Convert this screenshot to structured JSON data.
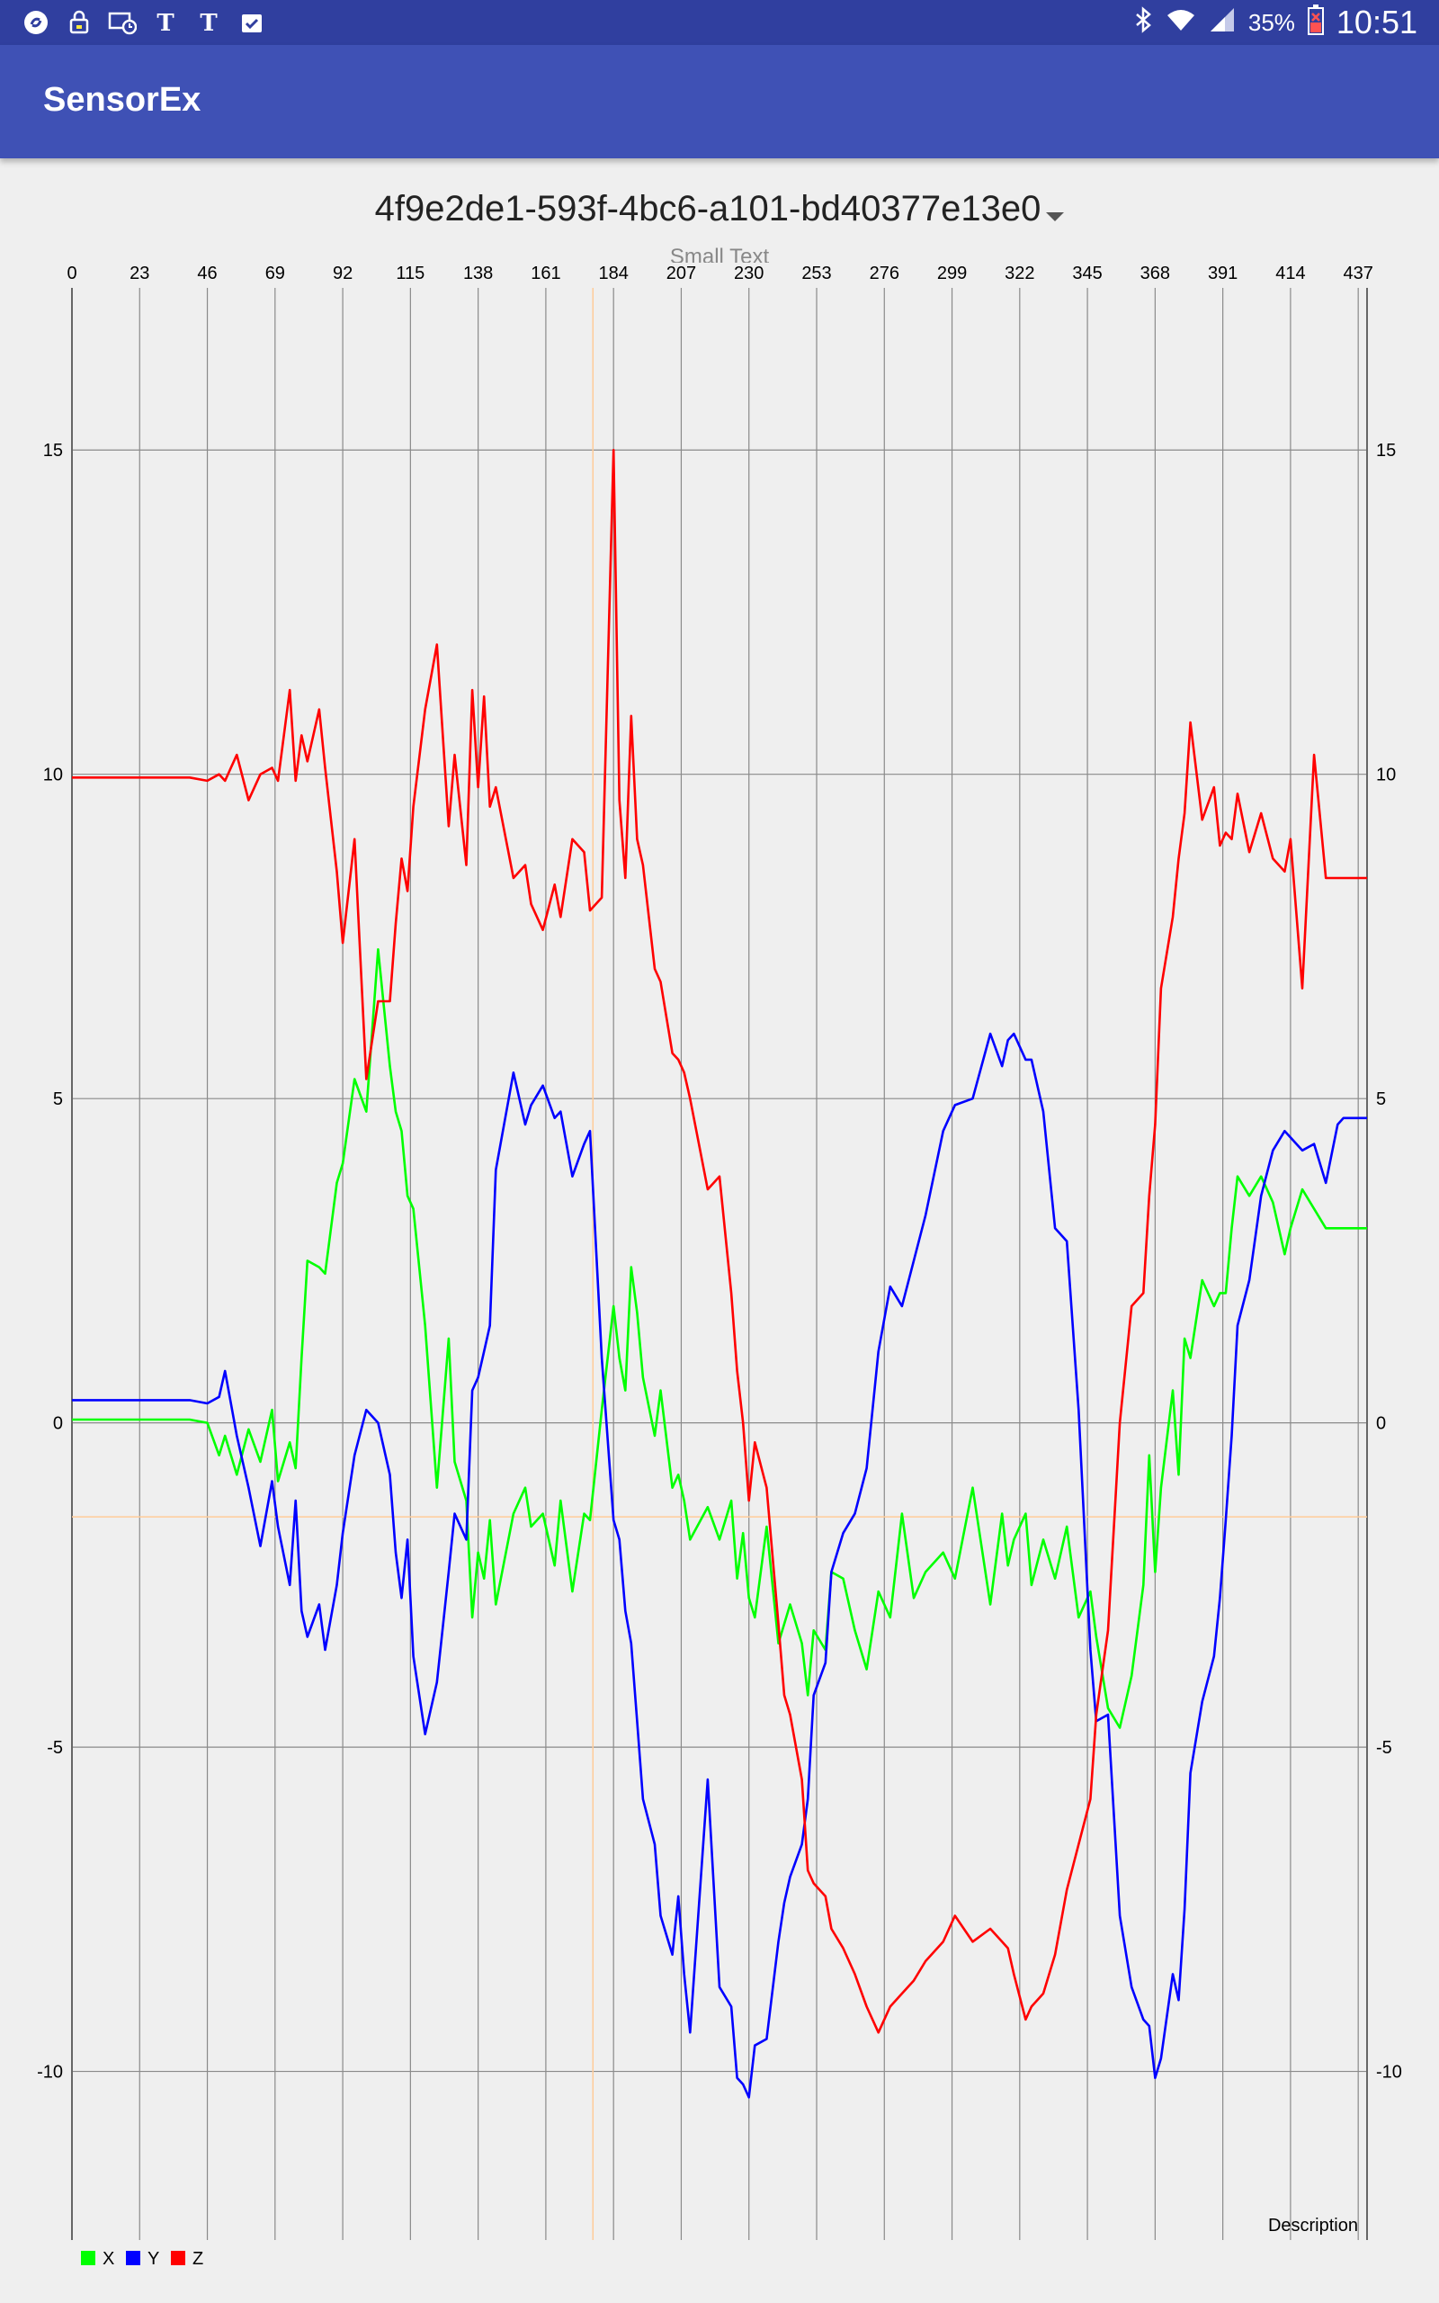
{
  "status_bar": {
    "icons_left": [
      "shazam-icon",
      "lock-app-icon",
      "screen-timer-icon",
      "nyt-icon",
      "nyt-icon",
      "clipboard-check-icon"
    ],
    "bluetooth_icon": "bluetooth-icon",
    "wifi_icon": "wifi-icon",
    "signal_icon": "signal-icon",
    "battery_percent": "35%",
    "battery_icon": "battery-icon",
    "time": "10:51"
  },
  "app": {
    "title": "SensorEx"
  },
  "spinner": {
    "selected": "4f9e2de1-593f-4bc6-a101-bd40377e13e0",
    "icon": "dropdown-caret-icon"
  },
  "small_text": "Small Text",
  "chart_data": {
    "type": "line",
    "x_ticks": [
      "0",
      "23",
      "46",
      "69",
      "92",
      "115",
      "138",
      "161",
      "184",
      "207",
      "230",
      "253",
      "276",
      "299",
      "322",
      "345",
      "368",
      "391",
      "414",
      "437"
    ],
    "y_ticks": [
      "15",
      "10",
      "5",
      "0",
      "-5",
      "-10"
    ],
    "xlim": [
      0,
      440
    ],
    "ylim": [
      -12.6,
      17.5
    ],
    "grid": true,
    "description": "Description",
    "legend_position": "bottom-left",
    "limit_lines": {
      "x": 177,
      "y": -1.45
    },
    "x_points": [
      0,
      20,
      40,
      46,
      50,
      52,
      56,
      60,
      64,
      68,
      70,
      74,
      76,
      78,
      80,
      84,
      86,
      90,
      92,
      96,
      100,
      104,
      108,
      110,
      112,
      114,
      116,
      120,
      124,
      128,
      130,
      134,
      136,
      138,
      140,
      142,
      144,
      150,
      154,
      156,
      160,
      164,
      166,
      170,
      174,
      176,
      180,
      184,
      186,
      188,
      190,
      192,
      194,
      198,
      200,
      204,
      206,
      208,
      210,
      216,
      220,
      224,
      226,
      228,
      230,
      232,
      236,
      240,
      242,
      244,
      248,
      250,
      252,
      256,
      258,
      262,
      266,
      270,
      274,
      278,
      282,
      286,
      290,
      296,
      300,
      306,
      312,
      316,
      318,
      320,
      324,
      326,
      330,
      334,
      338,
      342,
      346,
      348,
      352,
      356,
      360,
      364,
      366,
      368,
      370,
      374,
      376,
      378,
      380,
      384,
      388,
      390,
      392,
      394,
      396,
      400,
      404,
      408,
      412,
      414,
      418,
      422,
      426,
      430,
      432,
      434,
      436,
      438,
      440
    ],
    "series": [
      {
        "name": "X",
        "color": "#00ff00",
        "values": [
          0.05,
          0.05,
          0.05,
          0.0,
          -0.5,
          -0.2,
          -0.8,
          -0.1,
          -0.6,
          0.2,
          -0.9,
          -0.3,
          -0.7,
          1.0,
          2.5,
          2.4,
          2.3,
          3.7,
          4.0,
          5.3,
          4.8,
          7.3,
          5.5,
          4.8,
          4.5,
          3.5,
          3.3,
          1.5,
          -1.0,
          1.3,
          -0.6,
          -1.2,
          -3.0,
          -2.0,
          -2.4,
          -1.5,
          -2.8,
          -1.4,
          -1.0,
          -1.6,
          -1.4,
          -2.2,
          -1.2,
          -2.6,
          -1.4,
          -1.5,
          0.2,
          1.8,
          1.0,
          0.5,
          2.4,
          1.7,
          0.7,
          -0.2,
          0.5,
          -1.0,
          -0.8,
          -1.2,
          -1.8,
          -1.3,
          -1.8,
          -1.2,
          -2.4,
          -1.7,
          -2.7,
          -3.0,
          -1.6,
          -3.4,
          -3.1,
          -2.8,
          -3.4,
          -4.2,
          -3.2,
          -3.5,
          -2.3,
          -2.4,
          -3.2,
          -3.8,
          -2.6,
          -3.0,
          -1.4,
          -2.7,
          -2.3,
          -2.0,
          -2.4,
          -1.0,
          -2.8,
          -1.4,
          -2.2,
          -1.8,
          -1.4,
          -2.5,
          -1.8,
          -2.4,
          -1.6,
          -3.0,
          -2.6,
          -3.3,
          -4.4,
          -4.7,
          -3.9,
          -2.5,
          -0.5,
          -2.3,
          -1.0,
          0.5,
          -0.8,
          1.3,
          1.0,
          2.2,
          1.8,
          2.0,
          2.0,
          3.0,
          3.8,
          3.5,
          3.8,
          3.4,
          2.6,
          3.0,
          3.6,
          3.3,
          3.0,
          3.0,
          3.0,
          3.0,
          3.0,
          3.0,
          3.0
        ]
      },
      {
        "name": "Y",
        "color": "#0000ff",
        "values": [
          0.35,
          0.35,
          0.35,
          0.3,
          0.4,
          0.8,
          -0.2,
          -1.0,
          -1.9,
          -0.9,
          -1.6,
          -2.5,
          -1.2,
          -2.9,
          -3.3,
          -2.8,
          -3.5,
          -2.5,
          -1.7,
          -0.5,
          0.2,
          0.0,
          -0.8,
          -2.0,
          -2.7,
          -1.8,
          -3.6,
          -4.8,
          -4.0,
          -2.3,
          -1.4,
          -1.8,
          0.5,
          0.7,
          1.1,
          1.5,
          3.9,
          5.4,
          4.6,
          4.9,
          5.2,
          4.7,
          4.8,
          3.8,
          4.3,
          4.5,
          1.0,
          -1.5,
          -1.8,
          -2.9,
          -3.4,
          -4.6,
          -5.8,
          -6.5,
          -7.6,
          -8.2,
          -7.3,
          -8.5,
          -9.4,
          -5.5,
          -8.7,
          -9.0,
          -10.1,
          -10.2,
          -10.4,
          -9.6,
          -9.5,
          -8.0,
          -7.4,
          -7.0,
          -6.5,
          -5.8,
          -4.2,
          -3.7,
          -2.3,
          -1.7,
          -1.4,
          -0.7,
          1.1,
          2.1,
          1.8,
          2.5,
          3.2,
          4.5,
          4.9,
          5.0,
          6.0,
          5.5,
          5.9,
          6.0,
          5.6,
          5.6,
          4.8,
          3.0,
          2.8,
          0.2,
          -3.5,
          -4.6,
          -4.5,
          -7.6,
          -8.7,
          -9.2,
          -9.3,
          -10.1,
          -9.8,
          -8.5,
          -8.9,
          -7.5,
          -5.4,
          -4.3,
          -3.6,
          -2.7,
          -1.5,
          -0.2,
          1.5,
          2.2,
          3.5,
          4.2,
          4.5,
          4.4,
          4.2,
          4.3,
          3.7,
          4.6,
          4.7,
          4.7,
          4.7,
          4.7,
          4.7
        ]
      },
      {
        "name": "Z",
        "color": "#ff0000",
        "values": [
          9.95,
          9.95,
          9.95,
          9.9,
          10.0,
          9.9,
          10.3,
          9.6,
          10.0,
          10.1,
          9.9,
          11.3,
          9.9,
          10.6,
          10.2,
          11.0,
          10.1,
          8.5,
          7.4,
          9.0,
          5.3,
          6.5,
          6.5,
          7.7,
          8.7,
          8.2,
          9.5,
          11.0,
          12.0,
          9.2,
          10.3,
          8.6,
          11.3,
          9.8,
          11.2,
          9.5,
          9.8,
          8.4,
          8.6,
          8.0,
          7.6,
          8.3,
          7.8,
          9.0,
          8.8,
          7.9,
          8.1,
          15.0,
          9.6,
          8.4,
          10.9,
          9.0,
          8.6,
          7.0,
          6.8,
          5.7,
          5.6,
          5.4,
          5.0,
          3.6,
          3.8,
          2.0,
          0.8,
          0.0,
          -1.2,
          -0.3,
          -1.0,
          -3.1,
          -4.2,
          -4.5,
          -5.5,
          -6.9,
          -7.1,
          -7.3,
          -7.8,
          -8.1,
          -8.5,
          -9.0,
          -9.4,
          -9.0,
          -8.8,
          -8.6,
          -8.3,
          -8.0,
          -7.6,
          -8.0,
          -7.8,
          -8.0,
          -8.1,
          -8.5,
          -9.2,
          -9.0,
          -8.8,
          -8.2,
          -7.2,
          -6.5,
          -5.8,
          -4.5,
          -3.2,
          0.0,
          1.8,
          2.0,
          3.5,
          4.6,
          6.7,
          7.8,
          8.7,
          9.4,
          10.8,
          9.3,
          9.8,
          8.9,
          9.1,
          9.0,
          9.7,
          8.8,
          9.4,
          8.7,
          8.5,
          9.0,
          6.7,
          10.3,
          8.4,
          8.4,
          8.4,
          8.4,
          8.4,
          8.4,
          8.4
        ]
      }
    ]
  }
}
